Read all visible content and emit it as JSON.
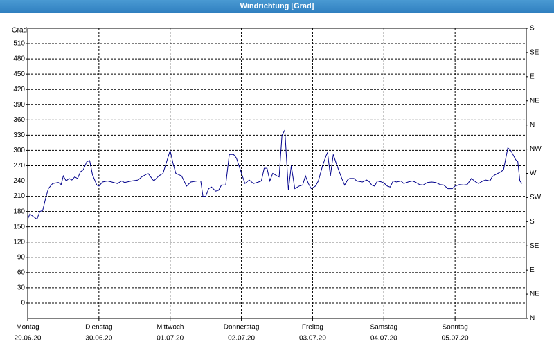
{
  "chart_data": {
    "type": "line",
    "title": "Windrichtung [Grad]",
    "y_label": "Grad",
    "xlim": [
      0,
      7
    ],
    "xticks": [
      0,
      1,
      2,
      3,
      4,
      5,
      6
    ],
    "xtick_days": [
      "Montag",
      "Dienstag",
      "Mittwoch",
      "Donnerstag",
      "Freitag",
      "Samstag",
      "Sonntag"
    ],
    "xtick_dates": [
      "29.06.20",
      "30.06.20",
      "01.07.20",
      "02.07.20",
      "03.07.20",
      "04.07.20",
      "05.07.20"
    ],
    "ylim": [
      -30,
      540
    ],
    "yticks": [
      0,
      30,
      60,
      90,
      120,
      150,
      180,
      210,
      240,
      270,
      300,
      330,
      360,
      390,
      420,
      450,
      480,
      510
    ],
    "y2lim": [
      0,
      540
    ],
    "y2ticks": [
      {
        "value": 0,
        "label": "N"
      },
      {
        "value": 45,
        "label": "NE"
      },
      {
        "value": 90,
        "label": "E"
      },
      {
        "value": 135,
        "label": "SE"
      },
      {
        "value": 180,
        "label": "S"
      },
      {
        "value": 225,
        "label": "SW"
      },
      {
        "value": 270,
        "label": "W"
      },
      {
        "value": 315,
        "label": "NW"
      },
      {
        "value": 360,
        "label": "N"
      },
      {
        "value": 405,
        "label": "NE"
      },
      {
        "value": 450,
        "label": "E"
      },
      {
        "value": 495,
        "label": "SE"
      },
      {
        "value": 540,
        "label": "S"
      }
    ],
    "grid": true,
    "color": "#00008b",
    "x": [
      0,
      0.03,
      0.1,
      0.13,
      0.17,
      0.21,
      0.25,
      0.29,
      0.35,
      0.43,
      0.47,
      0.5,
      0.54,
      0.58,
      0.62,
      0.66,
      0.7,
      0.74,
      0.78,
      0.83,
      0.87,
      0.91,
      0.97,
      1.0,
      1.05,
      1.12,
      1.18,
      1.26,
      1.32,
      1.36,
      1.46,
      1.55,
      1.6,
      1.69,
      1.77,
      1.84,
      1.9,
      2.0,
      2.04,
      2.08,
      2.16,
      2.23,
      2.29,
      2.38,
      2.43,
      2.46,
      2.5,
      2.54,
      2.58,
      2.64,
      2.68,
      2.72,
      2.78,
      2.83,
      2.89,
      2.93,
      2.99,
      3.05,
      3.11,
      3.17,
      3.24,
      3.28,
      3.32,
      3.36,
      3.4,
      3.44,
      3.5,
      3.53,
      3.57,
      3.61,
      3.66,
      3.7,
      3.75,
      3.81,
      3.86,
      3.9,
      3.94,
      3.98,
      4.04,
      4.08,
      4.14,
      4.19,
      4.21,
      4.25,
      4.29,
      4.33,
      4.37,
      4.41,
      4.45,
      4.49,
      4.52,
      4.58,
      4.62,
      4.7,
      4.76,
      4.8,
      4.83,
      4.87,
      4.91,
      4.97,
      5.01,
      5.05,
      5.09,
      5.13,
      5.18,
      5.24,
      5.28,
      5.34,
      5.4,
      5.44,
      5.5,
      5.55,
      5.61,
      5.67,
      5.73,
      5.79,
      5.84,
      5.9,
      5.96,
      6.0,
      6.06,
      6.12,
      6.17,
      6.23,
      6.29,
      6.33,
      6.39,
      6.43,
      6.49,
      6.52,
      6.56,
      6.6,
      6.64,
      6.68,
      6.74,
      6.78,
      6.82,
      6.85,
      6.88,
      6.91,
      6.94
    ],
    "values": [
      165,
      175,
      168,
      165,
      180,
      182,
      205,
      225,
      235,
      237,
      233,
      250,
      240,
      245,
      242,
      248,
      245,
      258,
      262,
      278,
      280,
      252,
      232,
      230,
      238,
      240,
      238,
      235,
      240,
      237,
      240,
      242,
      248,
      255,
      240,
      250,
      255,
      300,
      275,
      255,
      250,
      230,
      238,
      240,
      240,
      210,
      210,
      225,
      228,
      220,
      222,
      232,
      232,
      292,
      292,
      285,
      260,
      235,
      242,
      235,
      238,
      240,
      265,
      265,
      240,
      255,
      250,
      248,
      330,
      340,
      222,
      270,
      225,
      230,
      232,
      250,
      235,
      225,
      230,
      240,
      270,
      290,
      296,
      250,
      292,
      275,
      260,
      245,
      232,
      242,
      245,
      245,
      240,
      238,
      242,
      238,
      232,
      230,
      240,
      238,
      235,
      230,
      228,
      240,
      238,
      240,
      235,
      238,
      240,
      238,
      233,
      232,
      237,
      238,
      237,
      233,
      232,
      225,
      225,
      230,
      233,
      232,
      233,
      245,
      238,
      235,
      240,
      242,
      240,
      248,
      252,
      255,
      258,
      262,
      305,
      300,
      290,
      282,
      278,
      240,
      235
    ]
  }
}
